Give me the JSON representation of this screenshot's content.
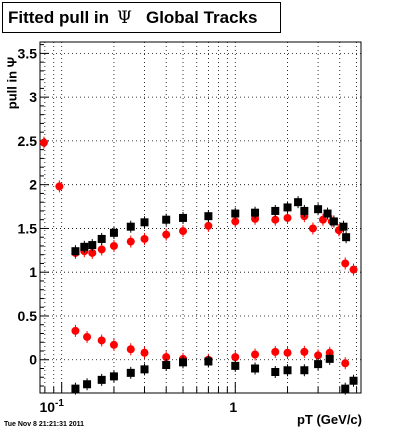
{
  "title": {
    "prefix": "Fitted pull in",
    "symbol": "Ψ",
    "suffix": "Global Tracks"
  },
  "ylabel": "pull in Ψ",
  "xlabel": "pT (GeV/c)",
  "timestamp": "Tue Nov  8 21:21:31 2011",
  "chart_data": {
    "type": "scatter",
    "x_scale": "log",
    "xlim": [
      0.075,
      5.3
    ],
    "ylim": [
      -0.38,
      3.63
    ],
    "y_ticks": [
      0,
      0.5,
      1,
      1.5,
      2,
      2.5,
      3,
      3.5
    ],
    "y_tick_labels": [
      "0",
      "0.5",
      "1",
      "1.5",
      "2",
      "2.5",
      "3",
      "3.5"
    ],
    "x_tick_labels": [
      {
        "value": 0.1,
        "base": "10",
        "exp": "-1"
      },
      {
        "value": 1,
        "base": "1",
        "exp": ""
      }
    ],
    "grid": true,
    "series": [
      {
        "color": "#ff0000",
        "marker": "circle",
        "points": [
          [
            0.079,
            2.48
          ],
          [
            0.097,
            1.98
          ],
          [
            0.12,
            1.22
          ],
          [
            0.135,
            1.24
          ],
          [
            0.15,
            1.22
          ],
          [
            0.17,
            1.26
          ],
          [
            0.2,
            1.3
          ],
          [
            0.25,
            1.35
          ],
          [
            0.3,
            1.38
          ],
          [
            0.4,
            1.43
          ],
          [
            0.5,
            1.47
          ],
          [
            0.7,
            1.53
          ],
          [
            1.0,
            1.58
          ],
          [
            1.3,
            1.61
          ],
          [
            1.7,
            1.6
          ],
          [
            2.0,
            1.62
          ],
          [
            2.5,
            1.64
          ],
          [
            2.8,
            1.5
          ],
          [
            3.2,
            1.6
          ],
          [
            3.6,
            1.58
          ],
          [
            3.95,
            1.48
          ],
          [
            4.3,
            1.1
          ],
          [
            4.8,
            1.03
          ]
        ]
      },
      {
        "color": "#000000",
        "marker": "square",
        "points": [
          [
            0.12,
            1.24
          ],
          [
            0.135,
            1.29
          ],
          [
            0.15,
            1.31
          ],
          [
            0.17,
            1.38
          ],
          [
            0.2,
            1.45
          ],
          [
            0.25,
            1.52
          ],
          [
            0.3,
            1.57
          ],
          [
            0.4,
            1.6
          ],
          [
            0.5,
            1.62
          ],
          [
            0.7,
            1.64
          ],
          [
            1.0,
            1.67
          ],
          [
            1.3,
            1.68
          ],
          [
            1.7,
            1.7
          ],
          [
            2.0,
            1.74
          ],
          [
            2.3,
            1.8
          ],
          [
            2.5,
            1.7
          ],
          [
            3.0,
            1.72
          ],
          [
            3.4,
            1.67
          ],
          [
            3.7,
            1.58
          ],
          [
            4.2,
            1.52
          ],
          [
            4.35,
            1.4
          ]
        ]
      },
      {
        "color": "#ff0000",
        "marker": "circle",
        "points": [
          [
            0.12,
            0.33
          ],
          [
            0.14,
            0.26
          ],
          [
            0.17,
            0.22
          ],
          [
            0.2,
            0.17
          ],
          [
            0.25,
            0.12
          ],
          [
            0.3,
            0.08
          ],
          [
            0.4,
            0.03
          ],
          [
            0.5,
            0.01
          ],
          [
            0.7,
            0.0
          ],
          [
            1.0,
            0.03
          ],
          [
            1.3,
            0.06
          ],
          [
            1.7,
            0.09
          ],
          [
            2.0,
            0.08
          ],
          [
            2.5,
            0.09
          ],
          [
            3.0,
            0.05
          ],
          [
            3.5,
            0.08
          ],
          [
            4.3,
            -0.04
          ]
        ]
      },
      {
        "color": "#000000",
        "marker": "square",
        "points": [
          [
            0.12,
            -0.33
          ],
          [
            0.14,
            -0.28
          ],
          [
            0.17,
            -0.23
          ],
          [
            0.2,
            -0.19
          ],
          [
            0.25,
            -0.15
          ],
          [
            0.3,
            -0.11
          ],
          [
            0.4,
            -0.06
          ],
          [
            0.5,
            -0.03
          ],
          [
            0.7,
            -0.02
          ],
          [
            1.0,
            -0.07
          ],
          [
            1.3,
            -0.1
          ],
          [
            1.7,
            -0.14
          ],
          [
            2.0,
            -0.12
          ],
          [
            2.5,
            -0.12
          ],
          [
            3.0,
            -0.05
          ],
          [
            3.5,
            0.01
          ],
          [
            4.3,
            -0.33
          ],
          [
            4.8,
            -0.24
          ]
        ]
      }
    ]
  }
}
